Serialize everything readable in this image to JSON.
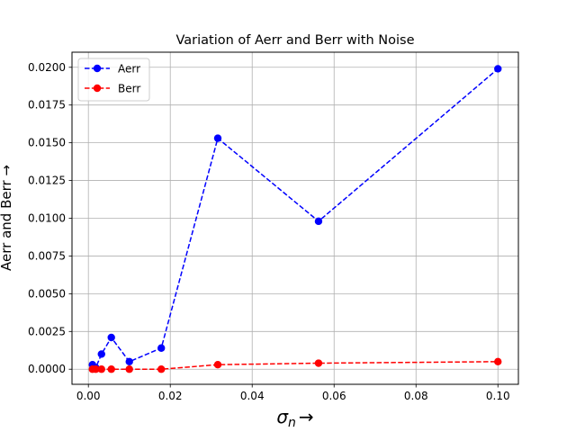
{
  "chart_data": {
    "type": "line",
    "title": "Variation of Aerr and Berr with Noise",
    "xlabel": "σn →",
    "xlabel_symbol": "σ",
    "xlabel_subscript": "n",
    "xlabel_arrow": "→",
    "ylabel": "Aerr and Berr →",
    "xlim": [
      -0.004,
      0.105
    ],
    "ylim": [
      -0.001,
      0.021
    ],
    "x_ticks": [
      "0.00",
      "0.02",
      "0.04",
      "0.06",
      "0.08",
      "0.10"
    ],
    "y_ticks": [
      "0.0000",
      "0.0025",
      "0.0050",
      "0.0075",
      "0.0100",
      "0.0125",
      "0.0150",
      "0.0175",
      "0.0200"
    ],
    "grid": true,
    "legend_position": "top-left",
    "x": [
      0.001,
      0.0018,
      0.0032,
      0.0056,
      0.01,
      0.0178,
      0.0316,
      0.0562,
      0.1
    ],
    "series": [
      {
        "name": "Aerr",
        "color": "#0000ff",
        "values": [
          0.0003,
          0.0001,
          0.001,
          0.0021,
          0.0005,
          0.0014,
          0.0153,
          0.0098,
          0.0199
        ]
      },
      {
        "name": "Berr",
        "color": "#ff0000",
        "values": [
          0.0,
          0.0,
          0.0,
          0.0,
          0.0,
          0.0,
          0.0003,
          0.0004,
          0.0005
        ]
      }
    ]
  }
}
